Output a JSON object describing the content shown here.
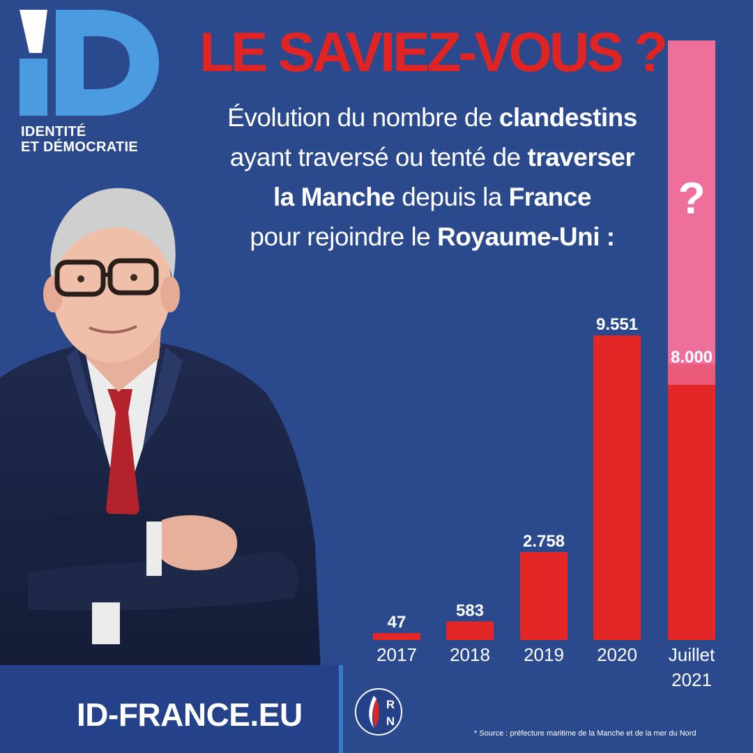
{
  "logo": {
    "brand_line1": "IDENTITÉ",
    "brand_line2": "ET DÉMOCRATIE",
    "icon": "id-logo-icon"
  },
  "headline": "LE SAVIEZ-VOUS ?",
  "subtitle": {
    "l1a": "Évolution du nombre de ",
    "l1b": "clandestins",
    "l2a": "ayant traversé ou tenté de ",
    "l2b": "traverser",
    "l3a": "la Manche",
    "l3b": " depuis la ",
    "l3c": "France",
    "l4a": "pour rejoindre le ",
    "l4b": "Royaume-Uni :"
  },
  "colors": {
    "background": "#2b4a8e",
    "bar": "#e32626",
    "projection": "#ee6f9b",
    "headline": "#e02424"
  },
  "chart_data": {
    "type": "bar",
    "categories": [
      "2017",
      "2018",
      "2019",
      "2020",
      "Juillet 2021"
    ],
    "category_lines": [
      [
        "2017"
      ],
      [
        "2018"
      ],
      [
        "2019"
      ],
      [
        "2020"
      ],
      [
        "Juillet",
        "2021"
      ]
    ],
    "values": [
      47,
      583,
      2758,
      9551,
      8000
    ],
    "value_labels": [
      "47",
      "583",
      "2.758",
      "9.551",
      "8.000"
    ],
    "projection_label": "?",
    "projection_value": 18800,
    "ylim": [
      0,
      18800
    ]
  },
  "footer": {
    "website": "ID-FRANCE.EU",
    "party_logo_letters": [
      "R",
      "N"
    ],
    "source": "* Source : préfecture maritime de la Manche et de la mer du Nord"
  }
}
